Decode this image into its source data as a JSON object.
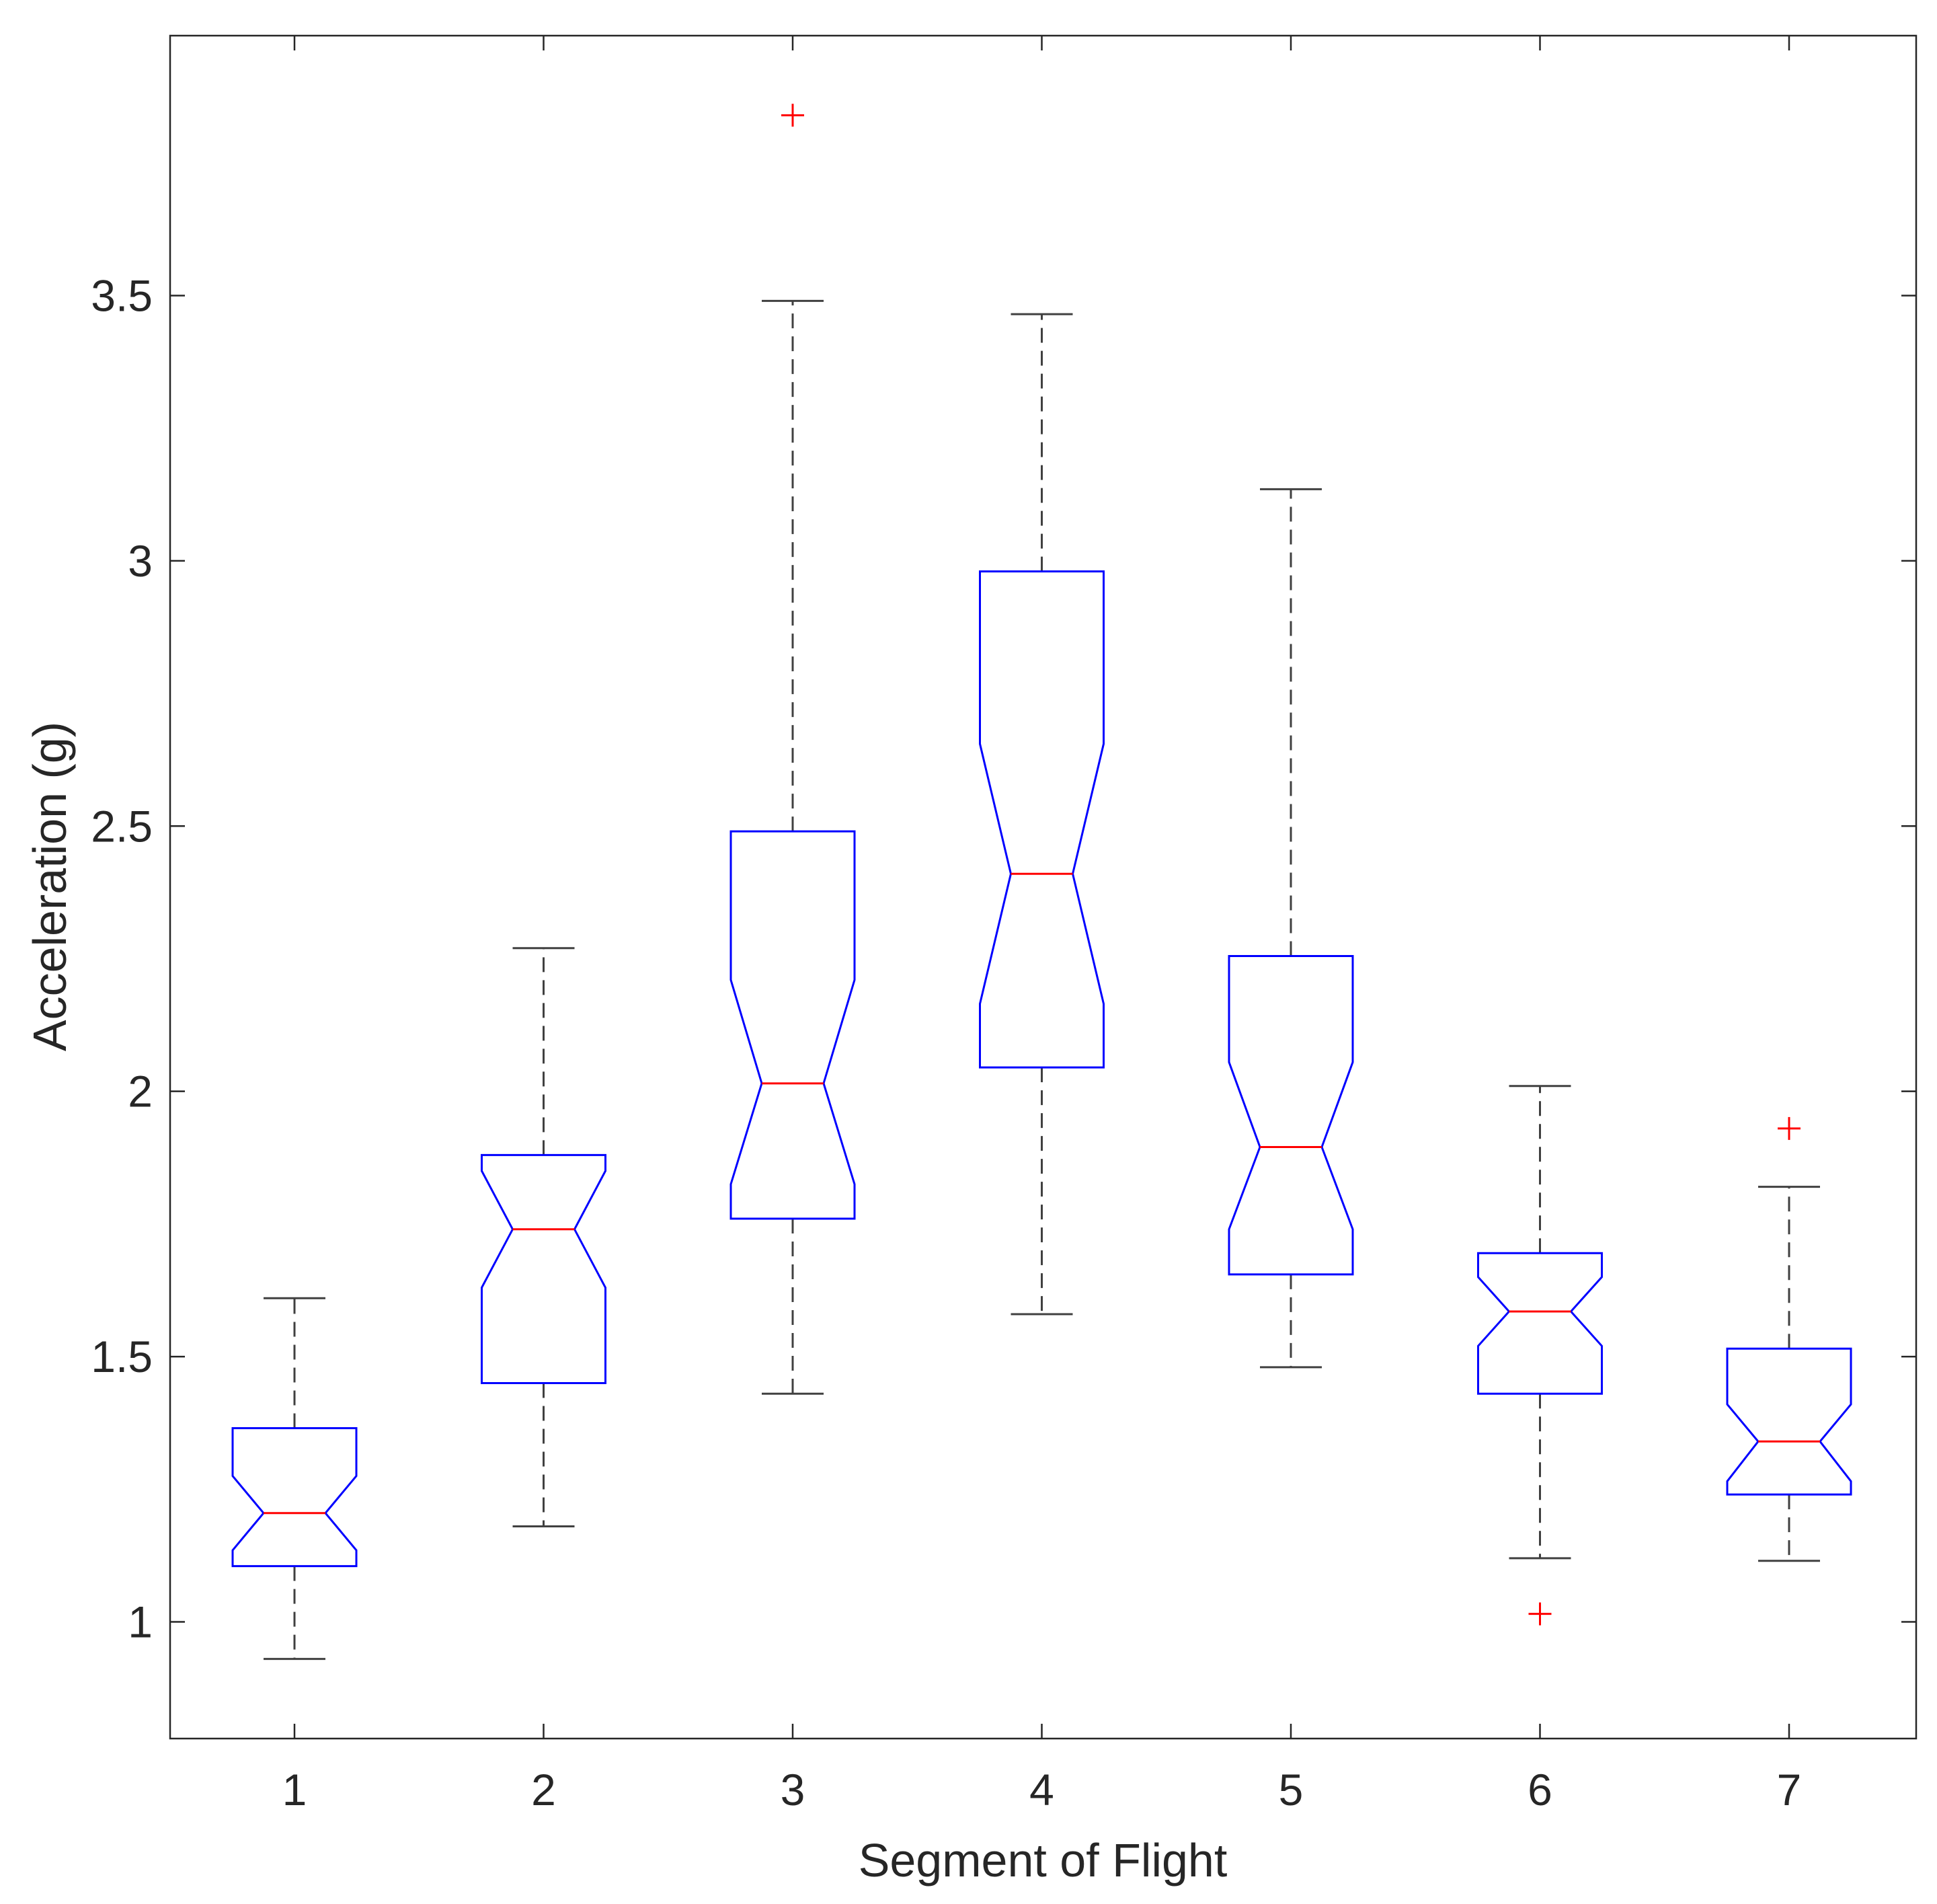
{
  "chart_data": {
    "type": "boxplot",
    "notched": true,
    "title": "",
    "xlabel": "Segment of Flight",
    "ylabel": "Acceleration (g)",
    "ylim": [
      0.78,
      3.99
    ],
    "yticks": [
      1,
      1.5,
      2,
      2.5,
      3,
      3.5
    ],
    "ytick_labels": [
      "1",
      "1.5",
      "2",
      "2.5",
      "3",
      "3.5"
    ],
    "categories": [
      "1",
      "2",
      "3",
      "4",
      "5",
      "6",
      "7"
    ],
    "boxes": [
      {
        "category": "1",
        "q1": 1.105,
        "median": 1.205,
        "q3": 1.365,
        "notch_low": 1.135,
        "notch_high": 1.275,
        "whisker_low": 0.93,
        "whisker_high": 1.61,
        "outliers": []
      },
      {
        "category": "2",
        "q1": 1.45,
        "median": 1.74,
        "q3": 1.88,
        "notch_low": 1.63,
        "notch_high": 1.85,
        "whisker_low": 1.18,
        "whisker_high": 2.27,
        "outliers": []
      },
      {
        "category": "3",
        "q1": 1.76,
        "median": 2.015,
        "q3": 2.49,
        "notch_low": 1.825,
        "notch_high": 2.21,
        "whisker_low": 1.43,
        "whisker_high": 3.49,
        "outliers": [
          3.84
        ]
      },
      {
        "category": "4",
        "q1": 2.045,
        "median": 2.41,
        "q3": 2.98,
        "notch_low": 2.165,
        "notch_high": 2.655,
        "whisker_low": 1.58,
        "whisker_high": 3.465,
        "outliers": []
      },
      {
        "category": "5",
        "q1": 1.655,
        "median": 1.895,
        "q3": 2.255,
        "notch_low": 1.74,
        "notch_high": 2.055,
        "whisker_low": 1.48,
        "whisker_high": 3.135,
        "outliers": []
      },
      {
        "category": "6",
        "q1": 1.43,
        "median": 1.585,
        "q3": 1.695,
        "notch_low": 1.52,
        "notch_high": 1.65,
        "whisker_low": 1.12,
        "whisker_high": 2.01,
        "outliers": [
          1.015
        ]
      },
      {
        "category": "7",
        "q1": 1.24,
        "median": 1.34,
        "q3": 1.515,
        "notch_low": 1.265,
        "notch_high": 1.41,
        "whisker_low": 1.115,
        "whisker_high": 1.82,
        "outliers": [
          1.93
        ]
      }
    ],
    "colors": {
      "box": "#0000ff",
      "median": "#ff0000",
      "outlier": "#ff0000",
      "whisker": "#404040",
      "axis": "#262626"
    }
  }
}
